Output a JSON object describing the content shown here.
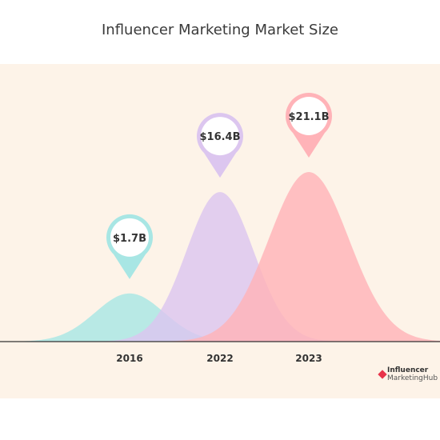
{
  "chart_data": {
    "type": "area",
    "title": "Influencer Marketing Market Size",
    "categories": [
      "2016",
      "2022",
      "2023"
    ],
    "values": [
      1.7,
      16.4,
      21.1
    ],
    "data_labels": [
      "$1.7B",
      "$16.4B",
      "$21.1B"
    ],
    "unit": "billion USD",
    "colors": [
      "#a8e6e4",
      "#dcc6ef",
      "#ffb3b8"
    ],
    "pin_colors": [
      "#a8e6e4",
      "#dcc6ef",
      "#ffb3b8"
    ],
    "xlabel": "",
    "ylabel": "",
    "grid": false,
    "legend": "none"
  },
  "logo": {
    "line1": "Influencer",
    "line2": "MarketingHub"
  }
}
